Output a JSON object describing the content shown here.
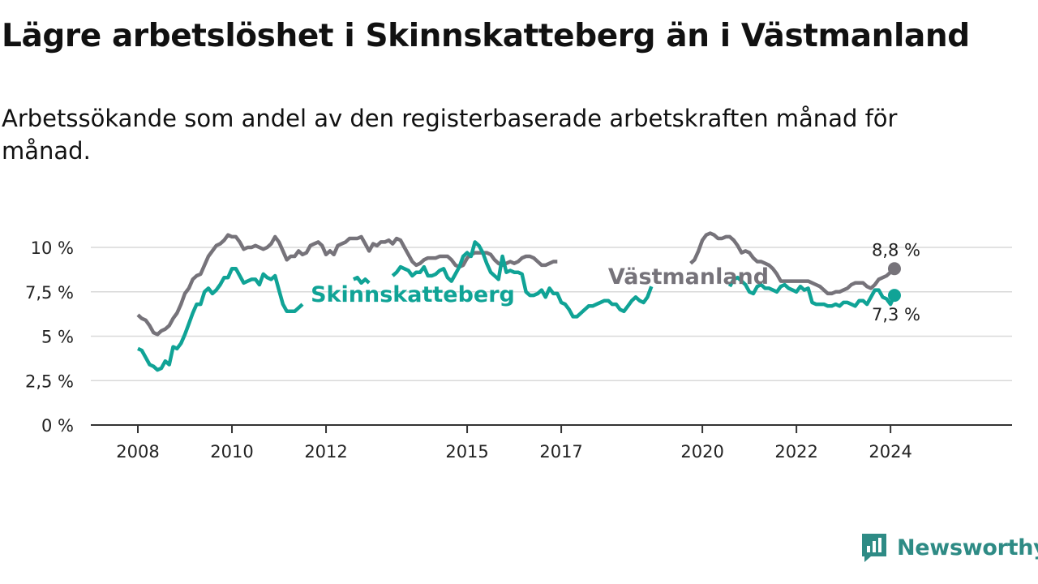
{
  "title": "Lägre arbetslöshet i Skinnskatteberg än i Västmanland",
  "subtitle": "Arbetssökande som andel av den registerbaserade arbetskraften månad för månad.",
  "brand": {
    "name": "Newsworthy",
    "color": "#2e8b85"
  },
  "chart_data": {
    "type": "line",
    "x_start": "2008-01",
    "x_step": "month",
    "xlim": [
      "2007-01",
      "2026-08"
    ],
    "x_ticks": [
      {
        "date": "2008-01",
        "label": "2008"
      },
      {
        "date": "2010-01",
        "label": "2010"
      },
      {
        "date": "2012-01",
        "label": "2012"
      },
      {
        "date": "2015-01",
        "label": "2015"
      },
      {
        "date": "2017-01",
        "label": "2017"
      },
      {
        "date": "2020-01",
        "label": "2020"
      },
      {
        "date": "2022-01",
        "label": "2022"
      },
      {
        "date": "2024-01",
        "label": "2024"
      }
    ],
    "ylim": [
      0,
      10.4
    ],
    "y_ticks": [
      {
        "value": 0,
        "label": "0 %"
      },
      {
        "value": 2.5,
        "label": "2,5 %"
      },
      {
        "value": 5,
        "label": "5 %"
      },
      {
        "value": 7.5,
        "label": "7,5 %"
      },
      {
        "value": 10,
        "label": "10 %"
      }
    ],
    "grid": true,
    "series": [
      {
        "name": "Västmanland",
        "color": "#76737a",
        "end_label": "8,8 %",
        "values": [
          6.2,
          6.0,
          5.9,
          5.6,
          5.2,
          5.1,
          5.3,
          5.4,
          5.6,
          6.0,
          6.3,
          6.8,
          7.4,
          7.7,
          8.2,
          8.4,
          8.5,
          9.0,
          9.5,
          9.8,
          10.1,
          10.2,
          10.4,
          10.7,
          10.6,
          10.6,
          10.3,
          9.9,
          10.0,
          10.0,
          10.1,
          10.0,
          9.9,
          10.0,
          10.2,
          10.6,
          10.3,
          9.8,
          9.3,
          9.5,
          9.5,
          9.8,
          9.6,
          9.7,
          10.1,
          10.2,
          10.3,
          10.1,
          9.6,
          9.8,
          9.6,
          10.1,
          10.2,
          10.3,
          10.5,
          10.5,
          10.5,
          10.6,
          10.2,
          9.8,
          10.2,
          10.1,
          10.3,
          10.3,
          10.4,
          10.2,
          10.5,
          10.4,
          10.0,
          9.6,
          9.2,
          9.0,
          9.1,
          9.3,
          9.4,
          9.4,
          9.4,
          9.5,
          9.5,
          9.5,
          9.3,
          9.0,
          8.9,
          9.0,
          9.4,
          9.6,
          9.7,
          9.7,
          9.7,
          9.7,
          9.6,
          9.3,
          9.1,
          9.0,
          9.1,
          9.2,
          9.1,
          9.2,
          9.4,
          9.5,
          9.5,
          9.4,
          9.2,
          9.0,
          9.0,
          9.1,
          9.2,
          9.2,
          null,
          null,
          null,
          null,
          null,
          null,
          null,
          null,
          null,
          null,
          null,
          null,
          null,
          null,
          null,
          null,
          null,
          null,
          null,
          null,
          null,
          null,
          null,
          null,
          null,
          null,
          null,
          null,
          null,
          null,
          null,
          null,
          null,
          9.1,
          9.3,
          9.8,
          10.4,
          10.7,
          10.8,
          10.7,
          10.5,
          10.5,
          10.6,
          10.6,
          10.4,
          10.1,
          9.7,
          9.8,
          9.7,
          9.4,
          9.2,
          9.2,
          9.1,
          9.0,
          8.8,
          8.5,
          8.1,
          8.1,
          8.1,
          8.1,
          8.1,
          8.1,
          8.1,
          8.1,
          8.0,
          7.9,
          7.8,
          7.6,
          7.4,
          7.4,
          7.5,
          7.5,
          7.6,
          7.7,
          7.9,
          8.0,
          8.0,
          8.0,
          7.8,
          7.7,
          7.9,
          8.2,
          8.3,
          8.4,
          8.6,
          8.8
        ]
      },
      {
        "name": "Skinnskatteberg",
        "color": "#10a396",
        "end_label": "7,3 %",
        "values": [
          4.3,
          4.2,
          3.8,
          3.4,
          3.3,
          3.1,
          3.2,
          3.6,
          3.4,
          4.4,
          4.3,
          4.6,
          5.1,
          5.7,
          6.3,
          6.8,
          6.8,
          7.5,
          7.7,
          7.4,
          7.6,
          7.9,
          8.3,
          8.3,
          8.8,
          8.8,
          8.4,
          8.0,
          8.1,
          8.2,
          8.2,
          7.9,
          8.5,
          8.3,
          8.2,
          8.4,
          7.6,
          6.8,
          6.4,
          6.4,
          6.4,
          6.6,
          6.8,
          null,
          null,
          null,
          null,
          null,
          null,
          null,
          null,
          null,
          null,
          null,
          null,
          8.2,
          8.3,
          8.0,
          8.2,
          8.0,
          null,
          null,
          null,
          null,
          null,
          8.4,
          8.6,
          8.9,
          8.8,
          8.7,
          8.4,
          8.6,
          8.6,
          8.9,
          8.4,
          8.4,
          8.5,
          8.7,
          8.8,
          8.3,
          8.1,
          8.5,
          8.9,
          9.5,
          9.7,
          9.5,
          10.3,
          10.1,
          9.7,
          9.1,
          8.6,
          8.4,
          8.2,
          9.5,
          8.6,
          8.7,
          8.6,
          8.6,
          8.5,
          7.5,
          7.3,
          7.3,
          7.4,
          7.6,
          7.2,
          7.7,
          7.4,
          7.4,
          6.9,
          6.8,
          6.5,
          6.1,
          6.1,
          6.3,
          6.5,
          6.7,
          6.7,
          6.8,
          6.9,
          7.0,
          7.0,
          6.8,
          6.8,
          6.5,
          6.4,
          6.7,
          7.0,
          7.2,
          7.0,
          6.9,
          7.2,
          7.8,
          null,
          null,
          null,
          null,
          null,
          null,
          null,
          null,
          null,
          null,
          null,
          null,
          null,
          null,
          null,
          null,
          null,
          null,
          null,
          7.8,
          8.2,
          8.3,
          8.1,
          7.9,
          7.5,
          7.4,
          7.8,
          7.9,
          7.7,
          7.7,
          7.6,
          7.5,
          7.8,
          7.9,
          7.7,
          7.6,
          7.5,
          7.8,
          7.6,
          7.7,
          6.9,
          6.8,
          6.8,
          6.8,
          6.7,
          6.7,
          6.8,
          6.7,
          6.9,
          6.9,
          6.8,
          6.7,
          7.0,
          7.0,
          6.8,
          7.2,
          7.6,
          7.6,
          7.2,
          7.1,
          6.8,
          7.3
        ]
      }
    ],
    "series_labels": [
      {
        "series": "Västmanland",
        "text": "Västmanland"
      },
      {
        "series": "Skinnskatteberg",
        "text": "Skinnskatteberg"
      }
    ]
  }
}
